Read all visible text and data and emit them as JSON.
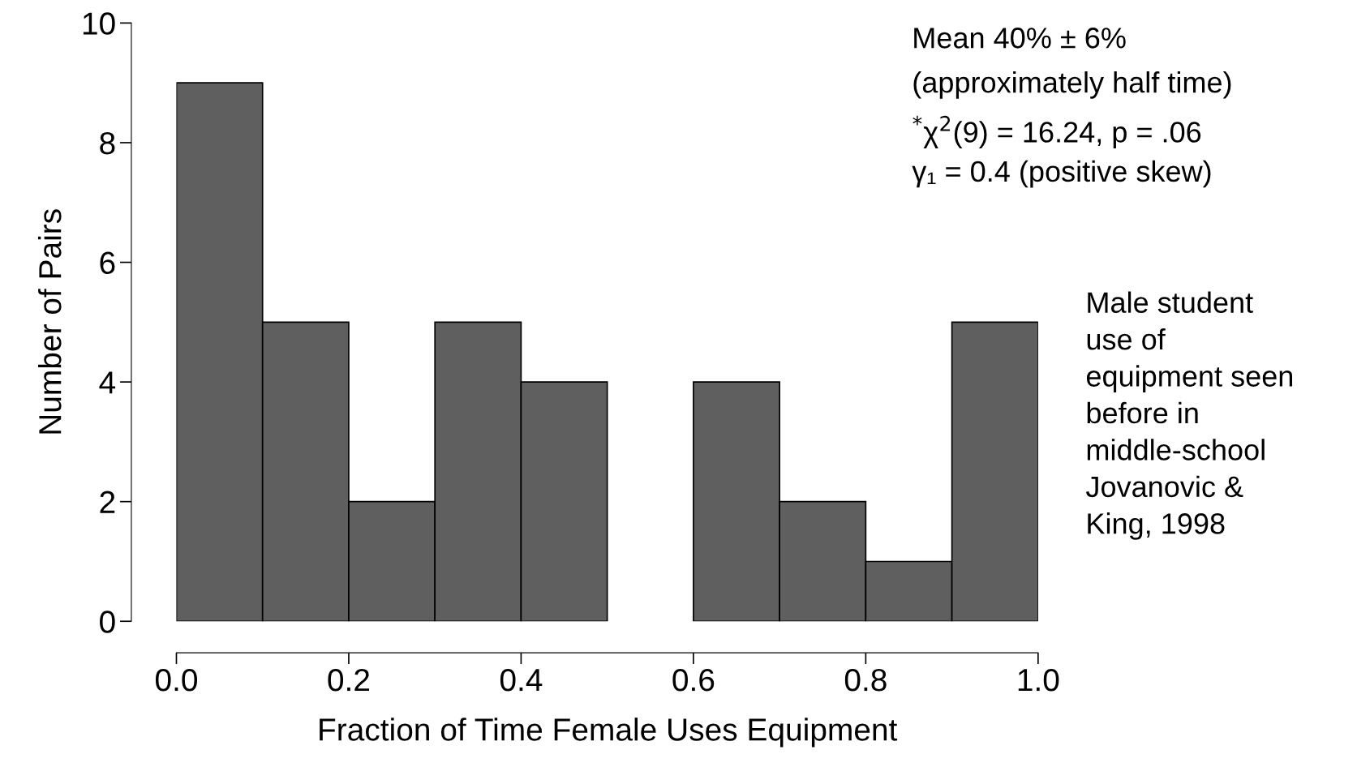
{
  "chart_data": {
    "type": "histogram",
    "xlabel": "Fraction of Time Female Uses Equipment",
    "ylabel": "Number of Pairs",
    "bins": [
      0.0,
      0.1,
      0.2,
      0.3,
      0.4,
      0.5,
      0.6,
      0.7,
      0.8,
      0.9,
      1.0
    ],
    "values": [
      9,
      5,
      2,
      5,
      4,
      0,
      4,
      2,
      1,
      5
    ],
    "color": "#5f5f5f",
    "xlim": [
      0,
      1
    ],
    "ylim": [
      0,
      10
    ],
    "xticks": [
      {
        "value": 0,
        "label": "0.0"
      },
      {
        "value": 0.2,
        "label": "0.2"
      },
      {
        "value": 0.4,
        "label": "0.4"
      },
      {
        "value": 0.6,
        "label": "0.6"
      },
      {
        "value": 0.8,
        "label": "0.8"
      },
      {
        "value": 1,
        "label": "1.0"
      }
    ],
    "yticks": [
      0,
      2,
      4,
      6,
      8,
      10
    ],
    "grid": false,
    "annotations": [
      "Mean 40% ± 6%",
      "(approximately half time)",
      "$^{*}$χ$^{2}$(9) = 16.24, p = .06",
      "γ₁ = 0.4 (positive skew)",
      "Male student\nuse of\nequipment seen\nbefore in\nmiddle-school\nJovanovic &\nKing, 1998"
    ]
  }
}
